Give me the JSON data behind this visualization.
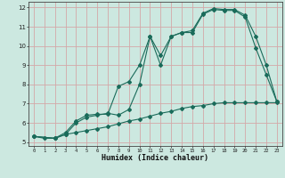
{
  "title": "",
  "xlabel": "Humidex (Indice chaleur)",
  "xlim": [
    -0.5,
    23.5
  ],
  "ylim": [
    4.8,
    12.3
  ],
  "yticks": [
    5,
    6,
    7,
    8,
    9,
    10,
    11,
    12
  ],
  "xticks": [
    0,
    1,
    2,
    3,
    4,
    5,
    6,
    7,
    8,
    9,
    10,
    11,
    12,
    13,
    14,
    15,
    16,
    17,
    18,
    19,
    20,
    21,
    22,
    23
  ],
  "background_color": "#cce8e0",
  "grid_color": "#d4a8a8",
  "line_color": "#1a6b5a",
  "line1_x": [
    0,
    1,
    2,
    3,
    4,
    5,
    6,
    7,
    8,
    9,
    10,
    11,
    12,
    13,
    14,
    15,
    16,
    17,
    18,
    19,
    20,
    21,
    22,
    23
  ],
  "line1_y": [
    5.3,
    5.2,
    5.2,
    5.4,
    5.5,
    5.6,
    5.7,
    5.8,
    5.95,
    6.1,
    6.2,
    6.35,
    6.5,
    6.6,
    6.75,
    6.85,
    6.9,
    7.0,
    7.05,
    7.05,
    7.05,
    7.05,
    7.05,
    7.05
  ],
  "line2_x": [
    0,
    2,
    3,
    4,
    5,
    6,
    7,
    8,
    9,
    10,
    11,
    12,
    13,
    14,
    15,
    16,
    17,
    18,
    19,
    20,
    21,
    22,
    23
  ],
  "line2_y": [
    5.3,
    5.2,
    5.5,
    6.1,
    6.4,
    6.45,
    6.45,
    7.9,
    8.15,
    9.0,
    10.5,
    9.5,
    10.5,
    10.7,
    10.8,
    11.7,
    11.95,
    11.9,
    11.9,
    11.6,
    10.5,
    9.0,
    7.1
  ],
  "line3_x": [
    0,
    2,
    3,
    4,
    5,
    6,
    7,
    8,
    9,
    10,
    11,
    12,
    13,
    14,
    15,
    16,
    17,
    18,
    19,
    20,
    21,
    22,
    23
  ],
  "line3_y": [
    5.3,
    5.2,
    5.4,
    6.0,
    6.3,
    6.4,
    6.5,
    6.4,
    6.7,
    8.0,
    10.5,
    9.0,
    10.5,
    10.7,
    10.7,
    11.65,
    11.9,
    11.85,
    11.85,
    11.5,
    9.9,
    8.5,
    7.1
  ]
}
